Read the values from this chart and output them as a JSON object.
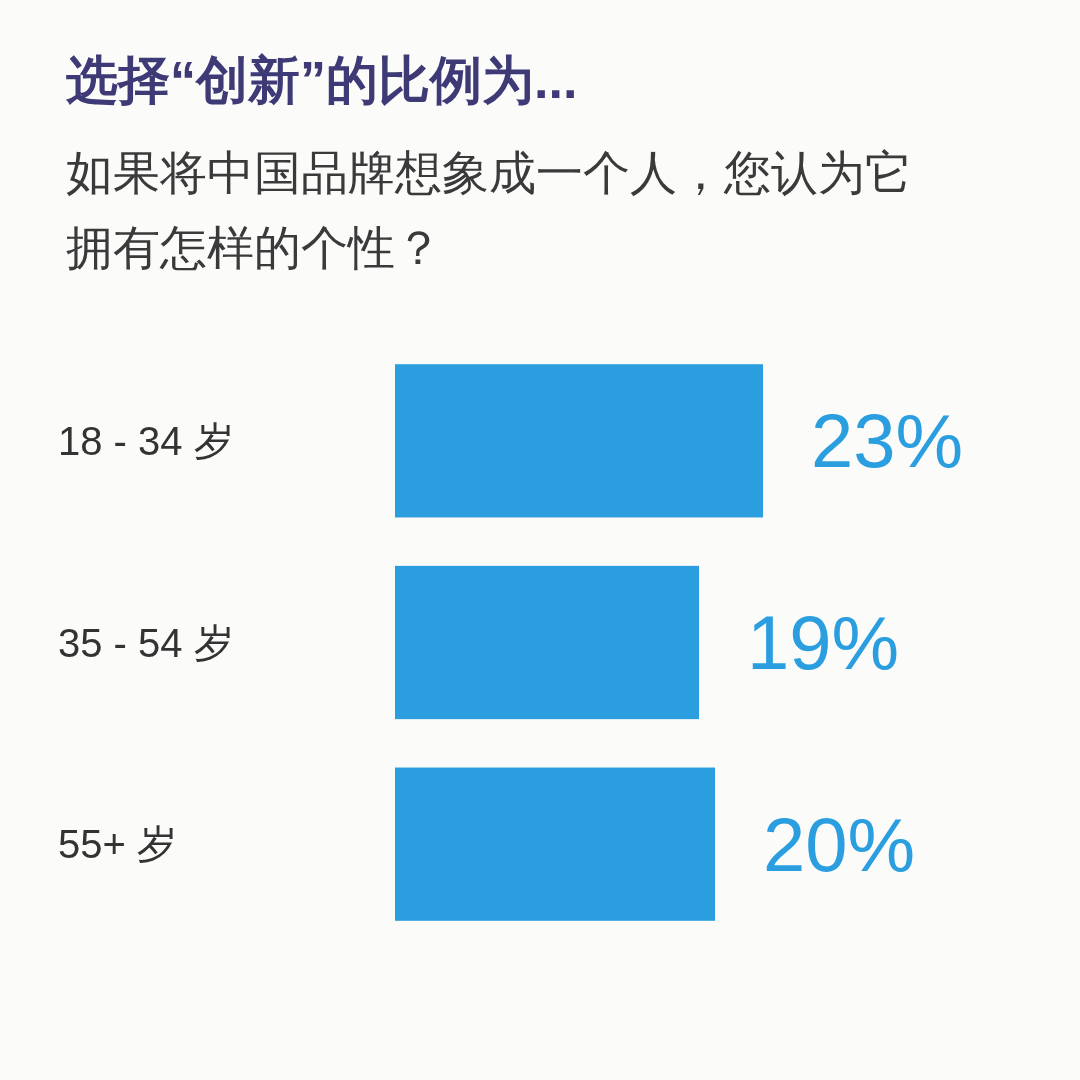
{
  "chart_data": {
    "type": "bar",
    "orientation": "horizontal",
    "title": "选择“创新”的比例为...",
    "subtitle": "如果将中国品牌想象成一个人，您认为它拥有怎样的个性？",
    "categories": [
      "18 - 34 岁",
      "35 - 54 岁",
      "55+ 岁"
    ],
    "values": [
      23,
      19,
      20
    ],
    "value_labels": [
      "23%",
      "19%",
      "20%"
    ],
    "color": "#2b9ee0"
  }
}
